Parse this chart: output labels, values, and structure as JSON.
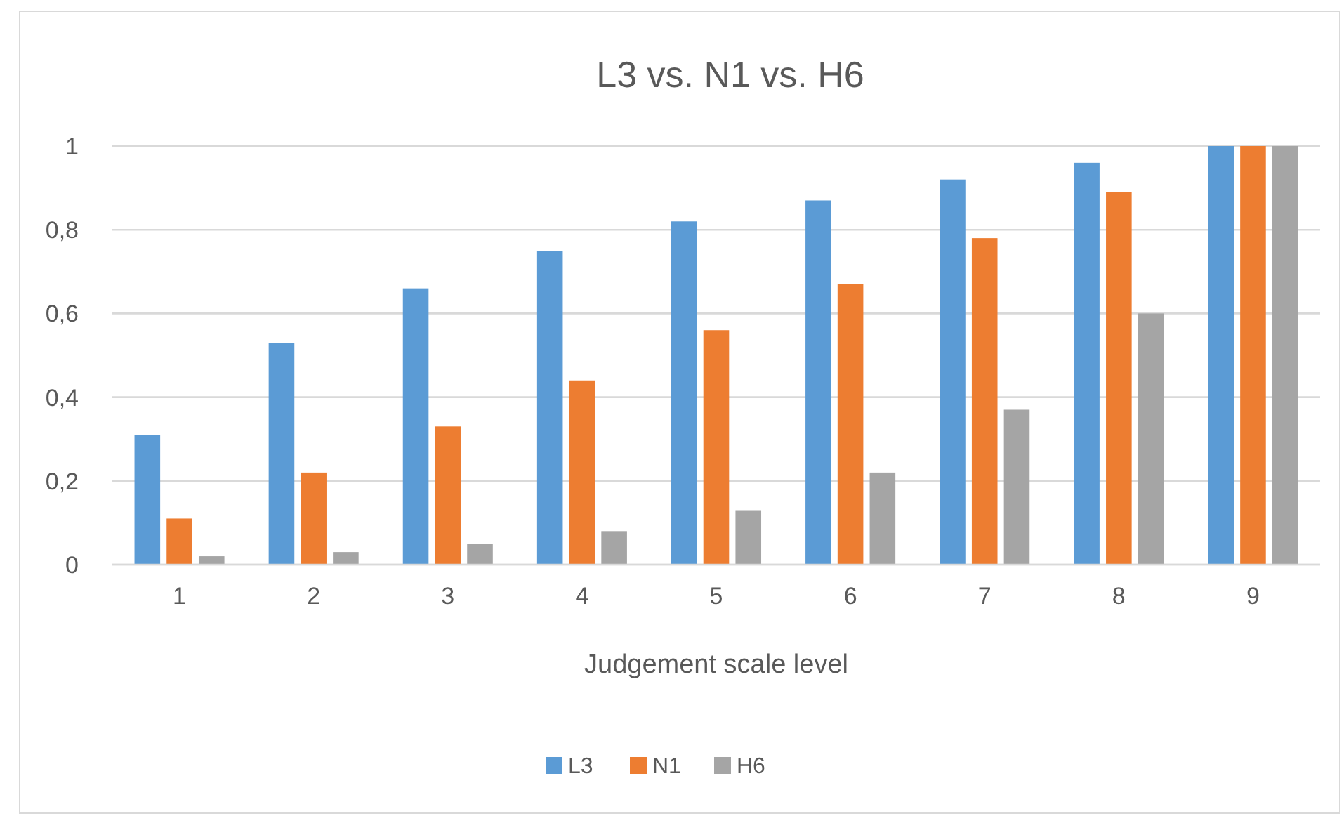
{
  "chart_data": {
    "type": "bar",
    "title": "L3 vs. N1 vs. H6",
    "xlabel": "Judgement scale level",
    "categories": [
      "1",
      "2",
      "3",
      "4",
      "5",
      "6",
      "7",
      "8",
      "9"
    ],
    "series": [
      {
        "name": "L3",
        "color": "#5b9bd5",
        "values": [
          0.31,
          0.53,
          0.66,
          0.75,
          0.82,
          0.87,
          0.92,
          0.96,
          1
        ]
      },
      {
        "name": "N1",
        "color": "#ed7d31",
        "values": [
          0.11,
          0.22,
          0.33,
          0.44,
          0.56,
          0.67,
          0.78,
          0.89,
          1
        ]
      },
      {
        "name": "H6",
        "color": "#a5a5a5",
        "values": [
          0.02,
          0.03,
          0.05,
          0.08,
          0.13,
          0.22,
          0.37,
          0.6,
          1
        ]
      }
    ],
    "ylim": [
      0,
      1
    ],
    "yticks": [
      0,
      {
        "value": 0.2,
        "label": "0,2"
      },
      {
        "value": 0.4,
        "label": "0,4"
      },
      {
        "value": 0.6,
        "label": "0,6"
      },
      {
        "value": 0.8,
        "label": "0,8"
      },
      1
    ],
    "grid": "y",
    "legend": "bottom"
  }
}
